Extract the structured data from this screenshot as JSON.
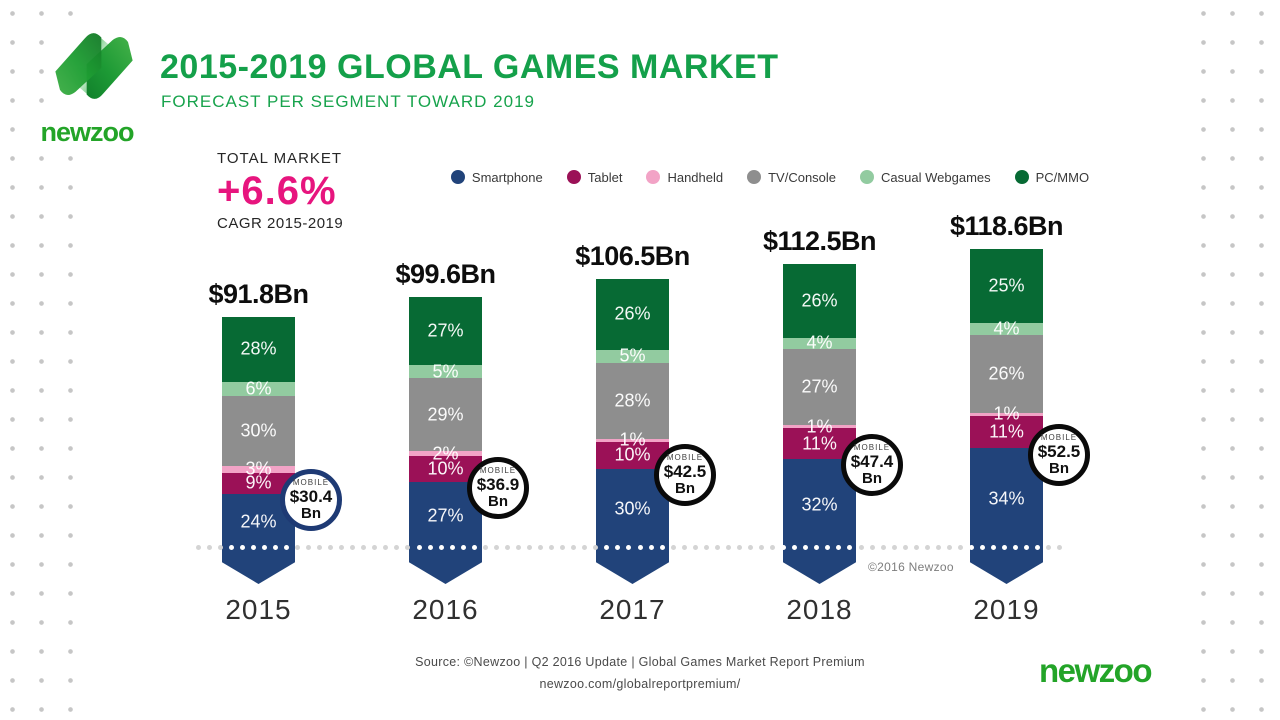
{
  "logo": {
    "wordmark": "newzoo"
  },
  "header": {
    "title": "2015-2019 GLOBAL GAMES MARKET",
    "subtitle": "FORECAST PER SEGMENT TOWARD 2019"
  },
  "total_market": {
    "label": "TOTAL MARKET",
    "value": "+6.6%",
    "sublabel": "CAGR 2015-2019"
  },
  "chart_data": {
    "type": "bar",
    "stacked": true,
    "title": "2015-2019 GLOBAL GAMES MARKET",
    "subtitle": "FORECAST PER SEGMENT TOWARD 2019",
    "cagr_2015_2019": "+6.6%",
    "categories": [
      "2015",
      "2016",
      "2017",
      "2018",
      "2019"
    ],
    "totals_bn": [
      91.8,
      99.6,
      106.5,
      112.5,
      118.6
    ],
    "total_labels": [
      "$91.8Bn",
      "$99.6Bn",
      "$106.5Bn",
      "$112.5Bn",
      "$118.6Bn"
    ],
    "series": [
      {
        "name": "PC/MMO",
        "color": "#076a34",
        "values_pct": [
          28,
          27,
          26,
          26,
          25
        ]
      },
      {
        "name": "Casual Webgames",
        "color": "#92cba0",
        "values_pct": [
          6,
          5,
          5,
          4,
          4
        ]
      },
      {
        "name": "TV/Console",
        "color": "#8e8e8e",
        "values_pct": [
          30,
          29,
          28,
          27,
          26
        ]
      },
      {
        "name": "Handheld",
        "color": "#f2a3c6",
        "values_pct": [
          3,
          2,
          1,
          1,
          1
        ]
      },
      {
        "name": "Tablet",
        "color": "#9b1157",
        "values_pct": [
          9,
          10,
          10,
          11,
          11
        ]
      },
      {
        "name": "Smartphone",
        "color": "#21437a",
        "values_pct": [
          24,
          27,
          30,
          32,
          34
        ]
      }
    ],
    "legend": [
      {
        "label": "Smartphone",
        "color": "#21437a"
      },
      {
        "label": "Tablet",
        "color": "#9b1157"
      },
      {
        "label": "Handheld",
        "color": "#f2a3c6"
      },
      {
        "label": "TV/Console",
        "color": "#8e8e8e"
      },
      {
        "label": "Casual Webgames",
        "color": "#92cba0"
      },
      {
        "label": "PC/MMO",
        "color": "#076a34"
      }
    ],
    "legend_position": "top",
    "mobile_callouts": [
      {
        "label": "MOBILE",
        "value": "$30.4",
        "unit": "Bn",
        "value_bn": 30.4,
        "ring_color": "#1e3a74"
      },
      {
        "label": "MOBILE",
        "value": "$36.9",
        "unit": "Bn",
        "value_bn": 36.9,
        "ring_color": "#0a0a0a"
      },
      {
        "label": "MOBILE",
        "value": "$42.5",
        "unit": "Bn",
        "value_bn": 42.5,
        "ring_color": "#0a0a0a"
      },
      {
        "label": "MOBILE",
        "value": "$47.4",
        "unit": "Bn",
        "value_bn": 47.4,
        "ring_color": "#0a0a0a"
      },
      {
        "label": "MOBILE",
        "value": "$52.5",
        "unit": "Bn",
        "value_bn": 52.5,
        "ring_color": "#0a0a0a"
      }
    ],
    "copyright": "©2016 Newzoo"
  },
  "footer": {
    "source_line1": "Source: ©Newzoo | Q2 2016 Update | Global Games Market Report Premium",
    "source_line2": "newzoo.com/globalreportpremium/",
    "wordmark": "newzoo"
  }
}
